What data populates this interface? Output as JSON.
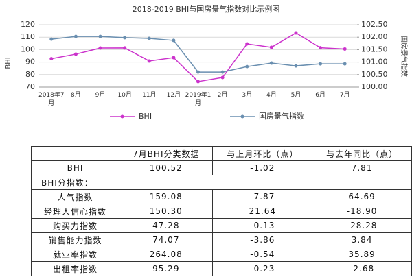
{
  "chart_data": {
    "type": "line",
    "title": "2018-2019 BHI与国房景气指数对比示例图",
    "y_label": "BHI",
    "y2_label": "国房景气指数",
    "categories": [
      "2018年7月",
      "8月",
      "9月",
      "10月",
      "11月",
      "12月",
      "2019年1月",
      "2月",
      "3月",
      "4月",
      "5月",
      "6月",
      "7月"
    ],
    "series": [
      {
        "name": "BHI",
        "color": "#cc33cc",
        "axis": "y",
        "values": [
          92.71,
          96.4,
          101.3,
          101.4,
          90.9,
          93.6,
          74.4,
          77.7,
          104.6,
          101.9,
          113.4,
          101.54,
          100.52
        ]
      },
      {
        "name": "国房景气指数",
        "color": "#6a8fb0",
        "axis": "y2",
        "values": [
          101.92,
          102.03,
          102.03,
          101.98,
          101.95,
          101.87,
          100.6,
          100.6,
          100.82,
          100.96,
          100.85,
          100.93,
          100.93
        ]
      }
    ],
    "ylim": [
      70,
      120
    ],
    "yticks": [
      70,
      80,
      90,
      100,
      110,
      120
    ],
    "y2lim": [
      100,
      102.5
    ],
    "y2ticks": [
      {
        "value": 100,
        "label": "100.00"
      },
      {
        "value": 100.5,
        "label": "100.50"
      },
      {
        "value": 101,
        "label": "101.00"
      },
      {
        "value": 101.5,
        "label": "101.50"
      },
      {
        "value": 102,
        "label": "102.00"
      },
      {
        "value": 102.5,
        "label": "102.50"
      }
    ],
    "grid": true,
    "legend": "bottom"
  },
  "table": {
    "header": [
      "7月BHI分类数据",
      "与上月环比（点）",
      "与去年同比（点）"
    ],
    "rows": [
      [
        "BHI",
        "100.52",
        "-1.02",
        "7.81"
      ],
      [
        "BHI分指数："
      ],
      [
        "人气指数",
        "159.08",
        "-7.87",
        "64.69"
      ],
      [
        "经理人信心指数",
        "150.30",
        "21.64",
        "-18.90"
      ],
      [
        "购买力指数",
        "47.28",
        "-0.13",
        "-28.28"
      ],
      [
        "销售能力指数",
        "74.07",
        "-3.86",
        "3.84"
      ],
      [
        "就业率指数",
        "264.08",
        "-0.54",
        "35.89"
      ],
      [
        "出租率指数",
        "95.29",
        "-0.23",
        "-2.68"
      ]
    ]
  }
}
